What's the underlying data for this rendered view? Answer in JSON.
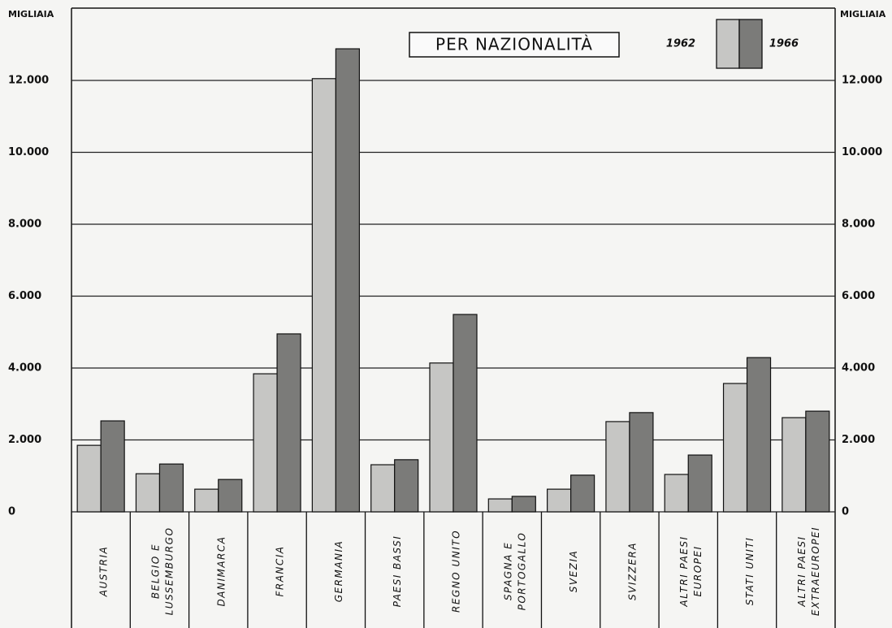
{
  "chart_data": {
    "type": "bar",
    "title": "PER NAZIONALITÀ",
    "y_label": "MIGLIAIA",
    "categories": [
      [
        "AUSTRIA"
      ],
      [
        "BELGIO E",
        "LUSSEMBURGO"
      ],
      [
        "DANIMARCA"
      ],
      [
        "FRANCIA"
      ],
      [
        "GERMANIA"
      ],
      [
        "PAESI BASSI"
      ],
      [
        "REGNO UNITO"
      ],
      [
        "SPAGNA E",
        "PORTOGALLO"
      ],
      [
        "SVEZIA"
      ],
      [
        "SVIZZERA"
      ],
      [
        "ALTRI PAESI",
        "EUROPEI"
      ],
      [
        "STATI UNITI"
      ],
      [
        "ALTRI PAESI",
        "EXTRAEUROPEI"
      ]
    ],
    "series": [
      {
        "name": "1962",
        "color": "#c6c6c4",
        "values": [
          1850,
          1060,
          630,
          3840,
          12050,
          1310,
          4140,
          360,
          630,
          2510,
          1040,
          3570,
          2620
        ]
      },
      {
        "name": "1966",
        "color": "#7b7b79",
        "values": [
          2530,
          1330,
          900,
          4950,
          12880,
          1450,
          5490,
          430,
          1020,
          2760,
          1580,
          4290,
          2800
        ]
      }
    ],
    "ylim": [
      0,
      14000
    ],
    "yticks": [
      0,
      {
        "value": 2000,
        "label": "2.000"
      },
      {
        "value": 4000,
        "label": "4.000"
      },
      {
        "value": 6000,
        "label": "6.000"
      },
      {
        "value": 8000,
        "label": "8.000"
      },
      {
        "value": 10000,
        "label": "10.000"
      },
      {
        "value": 12000,
        "label": "12.000"
      }
    ],
    "grid": true
  }
}
